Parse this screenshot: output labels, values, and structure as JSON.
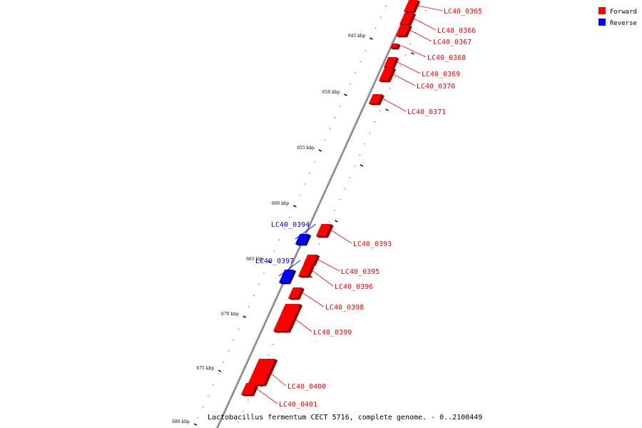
{
  "caption": "Lactobacillus fermentum CECT 5716, complete genome. - 0..2100449",
  "legend": [
    {
      "label": "Forward",
      "color": "#ff0000"
    },
    {
      "label": "Reverse",
      "color": "#0000ff"
    }
  ],
  "colors": {
    "forward": "#ff0000",
    "reverse": "#0000ff",
    "backbone": "#808080"
  },
  "ticks": [
    {
      "kbp": 645,
      "label": "645 kbp"
    },
    {
      "kbp": 650,
      "label": "650 kbp"
    },
    {
      "kbp": 655,
      "label": "655 kbp"
    },
    {
      "kbp": 660,
      "label": "660 kbp"
    },
    {
      "kbp": 665,
      "label": "665 kbp"
    },
    {
      "kbp": 670,
      "label": "670 kbp"
    },
    {
      "kbp": 675,
      "label": "675 kbp"
    },
    {
      "kbp": 680,
      "label": "680 kbp"
    }
  ],
  "genes": [
    {
      "name": "LC40_0365",
      "strand": "forward"
    },
    {
      "name": "LC40_0366",
      "strand": "forward"
    },
    {
      "name": "LC40_0367",
      "strand": "forward"
    },
    {
      "name": "LC40_0368",
      "strand": "forward"
    },
    {
      "name": "LC40_0369",
      "strand": "forward"
    },
    {
      "name": "LC40_0370",
      "strand": "forward"
    },
    {
      "name": "LC40_0371",
      "strand": "forward"
    },
    {
      "name": "LC40_0393",
      "strand": "forward"
    },
    {
      "name": "LC40_0394",
      "strand": "reverse"
    },
    {
      "name": "LC40_0395",
      "strand": "forward"
    },
    {
      "name": "LC40_0396",
      "strand": "forward"
    },
    {
      "name": "LC40_0397",
      "strand": "reverse"
    },
    {
      "name": "LC40_0398",
      "strand": "forward"
    },
    {
      "name": "LC40_0399",
      "strand": "forward"
    },
    {
      "name": "LC40_0400",
      "strand": "forward"
    },
    {
      "name": "LC40_0401",
      "strand": "forward"
    }
  ]
}
